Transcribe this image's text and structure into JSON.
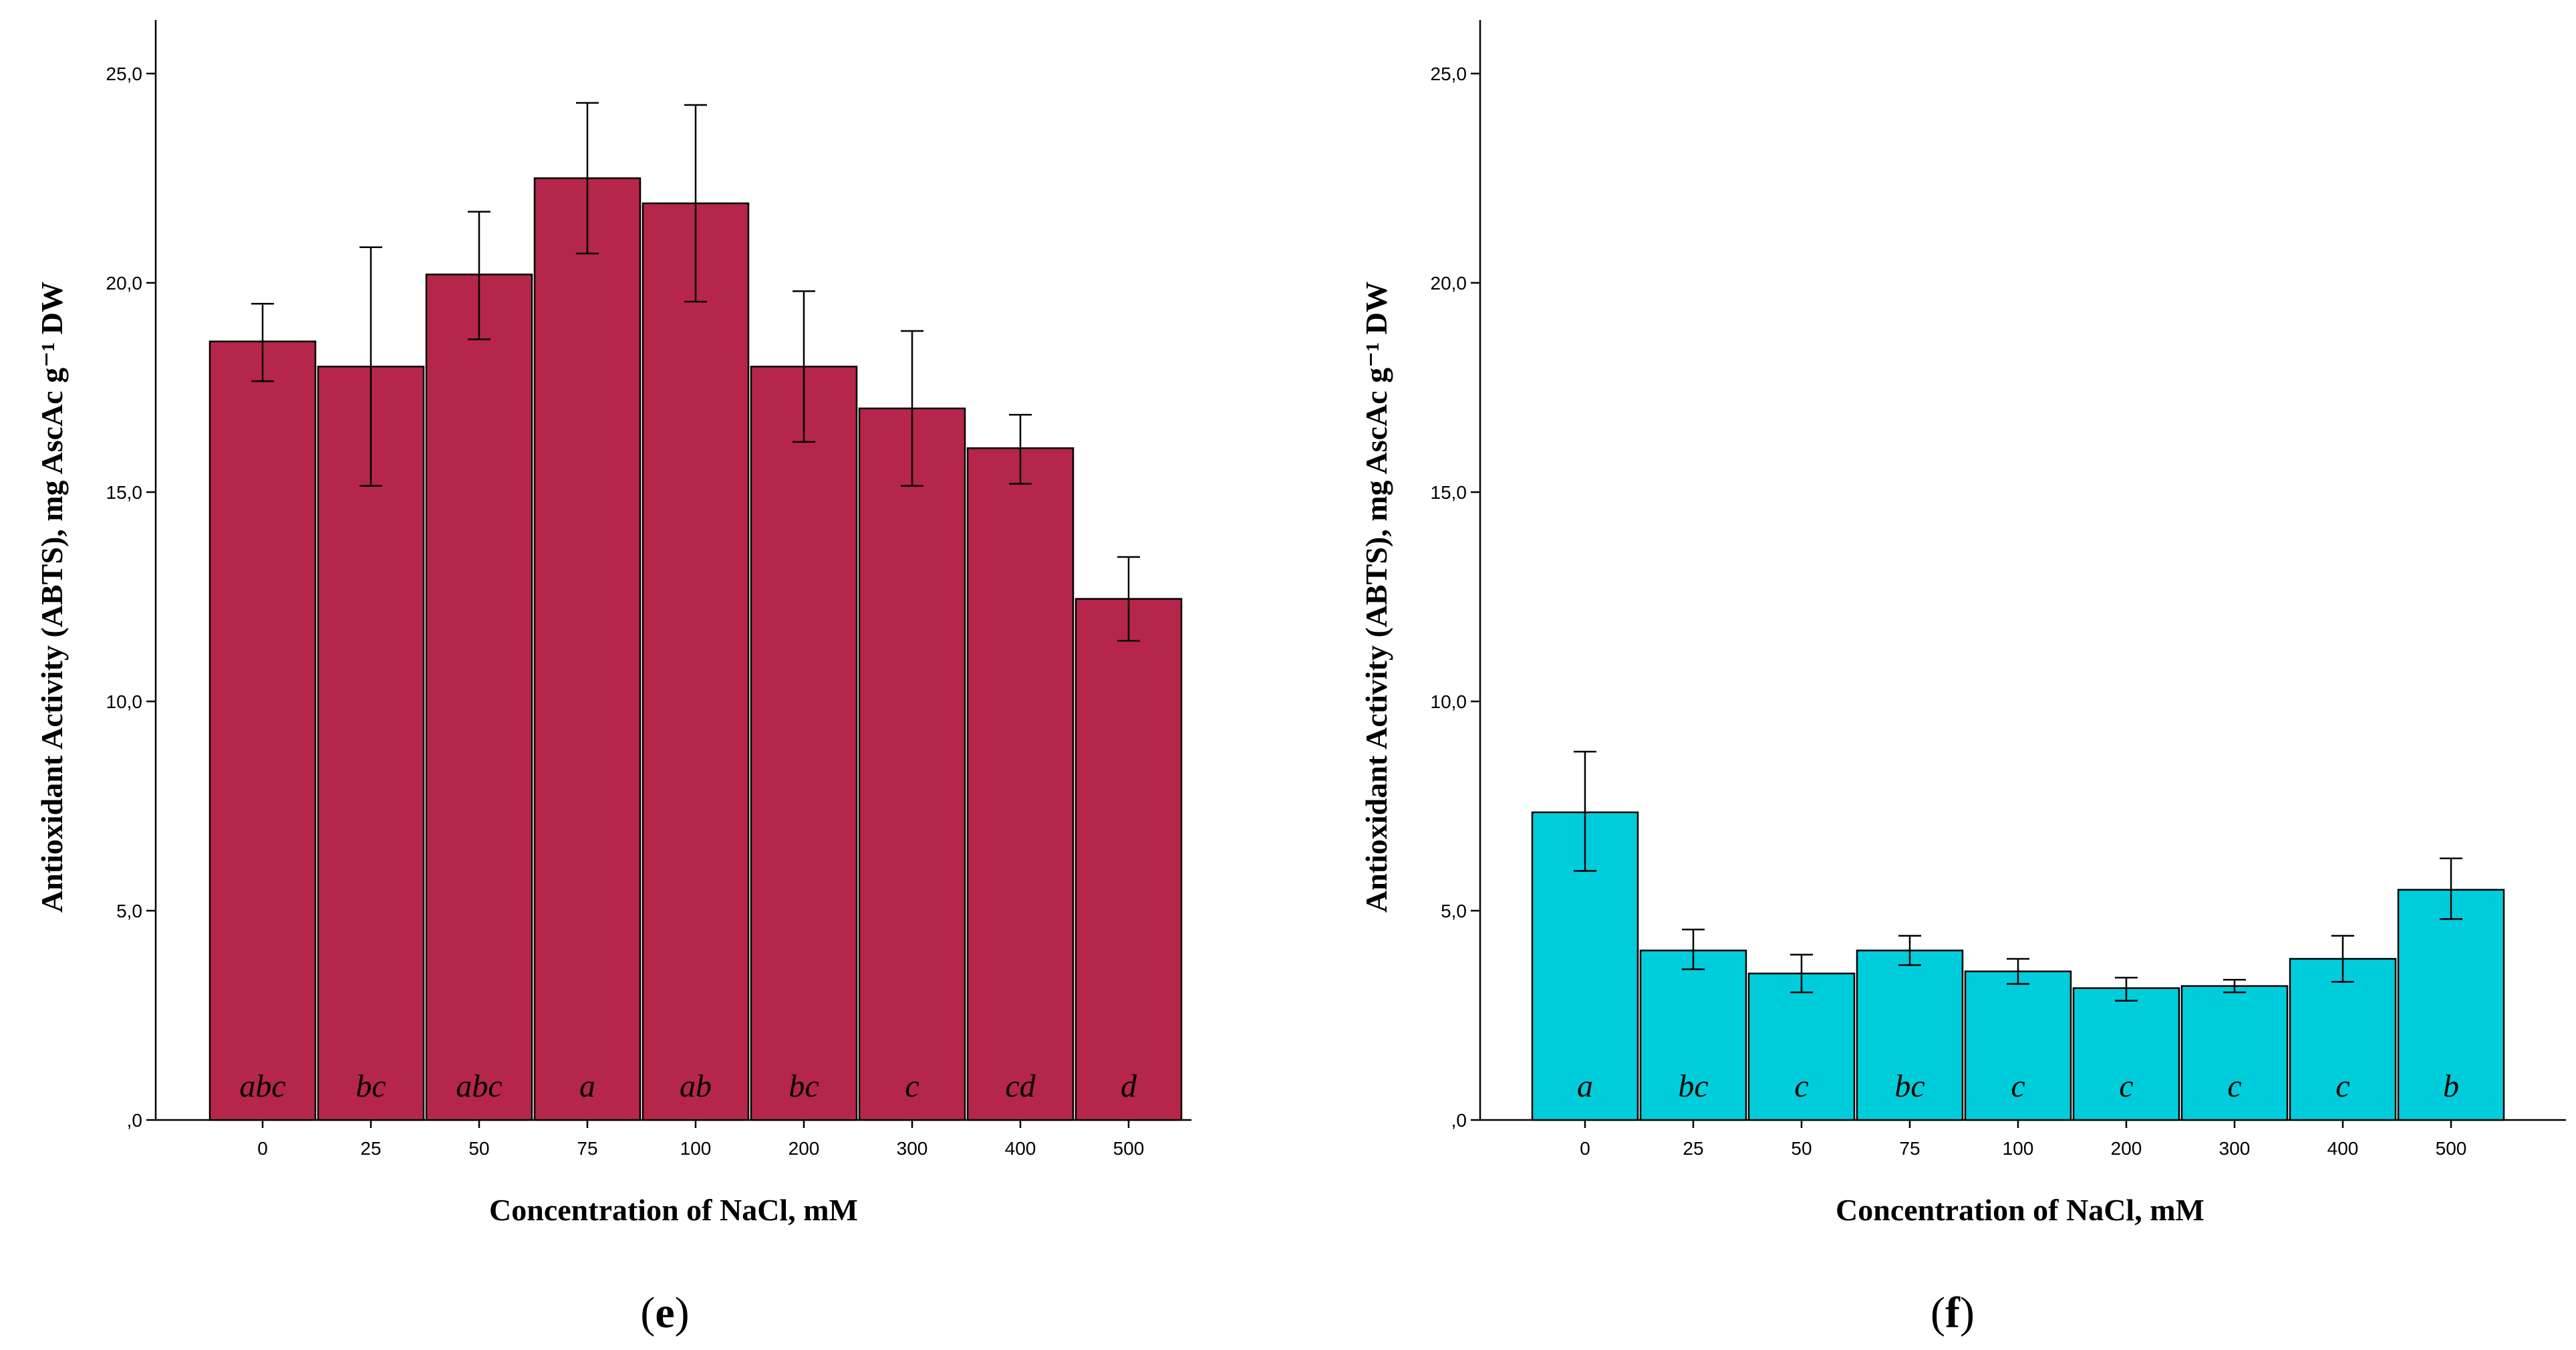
{
  "chart_data": [
    {
      "type": "bar",
      "panel_label": "e",
      "categories": [
        "0",
        "25",
        "50",
        "75",
        "100",
        "200",
        "300",
        "400",
        "500"
      ],
      "values": [
        18.6,
        18.0,
        20.2,
        22.5,
        21.9,
        18.0,
        17.0,
        16.05,
        12.45
      ],
      "error_low": [
        17.65,
        15.15,
        18.65,
        20.7,
        19.55,
        16.2,
        15.15,
        15.2,
        11.45
      ],
      "error_high": [
        19.5,
        20.85,
        21.7,
        24.3,
        24.25,
        19.8,
        18.85,
        16.85,
        13.45
      ],
      "significance_letters": [
        "abc",
        "bc",
        "abc",
        "a",
        "ab",
        "bc",
        "c",
        "cd",
        "d"
      ],
      "bar_color": "#B5264A",
      "xlabel": "Concentration of NaCl, mM",
      "ylabel": "Antioxidant Activity (ABTS), mg AscAc g⁻¹ DW",
      "ylim": [
        0,
        25
      ],
      "yticks": [
        0,
        5,
        10,
        15,
        20,
        25
      ],
      "ytick_labels": [
        ",0",
        "5,0",
        "10,0",
        "15,0",
        "20,0",
        "25,0"
      ],
      "grid": false
    },
    {
      "type": "bar",
      "panel_label": "f",
      "categories": [
        "0",
        "25",
        "50",
        "75",
        "100",
        "200",
        "300",
        "400",
        "500"
      ],
      "values": [
        7.35,
        4.05,
        3.5,
        4.05,
        3.55,
        3.15,
        3.2,
        3.85,
        5.5
      ],
      "error_low": [
        5.95,
        3.6,
        3.05,
        3.7,
        3.25,
        2.85,
        3.05,
        3.3,
        4.8
      ],
      "error_high": [
        8.8,
        4.55,
        3.95,
        4.4,
        3.85,
        3.4,
        3.35,
        4.4,
        6.25
      ],
      "significance_letters": [
        "a",
        "bc",
        "c",
        "bc",
        "c",
        "c",
        "c",
        "c",
        "b"
      ],
      "bar_color": "#00CDDB",
      "xlabel": "Concentration of NaCl, mM",
      "ylabel": "Antioxidant Activity (ABTS), mg AscAc g⁻¹ DW",
      "ylim": [
        0,
        25
      ],
      "yticks": [
        0,
        5,
        10,
        15,
        20,
        25
      ],
      "ytick_labels": [
        ",0",
        "5,0",
        "10,0",
        "15,0",
        "20,0",
        "25,0"
      ],
      "grid": false
    }
  ]
}
